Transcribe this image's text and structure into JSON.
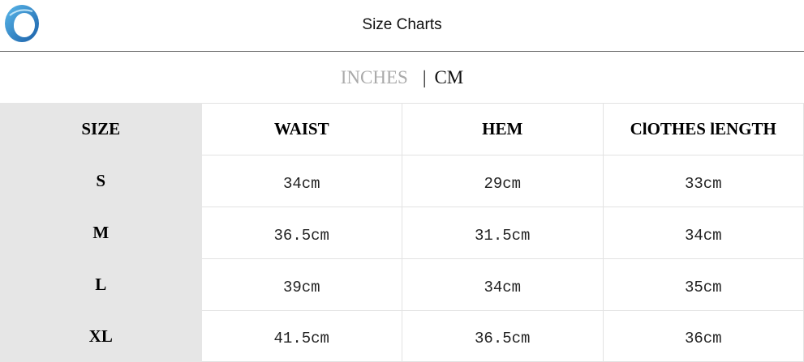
{
  "header": {
    "title": "Size Charts",
    "logo": "circular blue swirl logo"
  },
  "units": {
    "inches_label": "INCHES",
    "separator": "|",
    "cm_label": "CM",
    "active": "CM",
    "inactive_color": "#aaaaaa"
  },
  "table": {
    "columns": [
      "SIZE",
      "WAIST",
      "HEM",
      "ClOTHES lENGTH"
    ],
    "rows": [
      {
        "size": "S",
        "waist": "34cm",
        "hem": "29cm",
        "length": "33cm"
      },
      {
        "size": "M",
        "waist": "36.5cm",
        "hem": "31.5cm",
        "length": "34cm"
      },
      {
        "size": "L",
        "waist": "39cm",
        "hem": "34cm",
        "length": "35cm"
      },
      {
        "size": "XL",
        "waist": "41.5cm",
        "hem": "36.5cm",
        "length": "36cm"
      }
    ]
  }
}
